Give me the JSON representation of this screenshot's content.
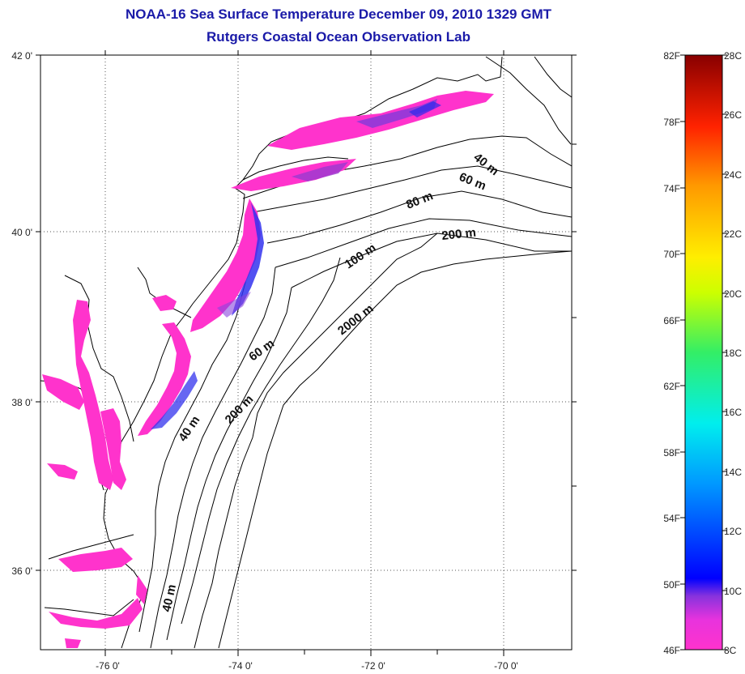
{
  "header": {
    "title": "NOAA-16 Sea Surface Temperature December 09, 2010 1329 GMT",
    "subtitle": "Rutgers Coastal Ocean Observation Lab"
  },
  "map": {
    "lat_labels": [
      "42 0'",
      "40 0'",
      "38 0'",
      "36 0'"
    ],
    "lon_labels": [
      "-76 0'",
      "-74 0'",
      "-72 0'",
      "-70 0'"
    ],
    "lon_range": [
      -77.0,
      -69.0
    ],
    "lat_range": [
      35.0,
      42.0
    ],
    "grid": "dotted",
    "isobath_labels": [
      "40 m",
      "60 m",
      "80 m",
      "200 m",
      "100 m",
      "2000 m",
      "60 m",
      "200 m",
      "40 m",
      "40 m"
    ]
  },
  "colorbar": {
    "fahrenheit_labels": [
      "82F",
      "78F",
      "74F",
      "70F",
      "66F",
      "62F",
      "58F",
      "54F",
      "50F",
      "46F"
    ],
    "celsius_labels": [
      "28C",
      "26C",
      "24C",
      "22C",
      "20C",
      "18C",
      "16C",
      "14C",
      "12C",
      "10C",
      "8C"
    ],
    "range_c": [
      8,
      28
    ],
    "colors": [
      "#ff33cc",
      "#8833dd",
      "#0000ff",
      "#0099ff",
      "#00eeee",
      "#33ee66",
      "#ccff00",
      "#ffcc00",
      "#ff6600",
      "#ee0000",
      "#880000"
    ]
  }
}
